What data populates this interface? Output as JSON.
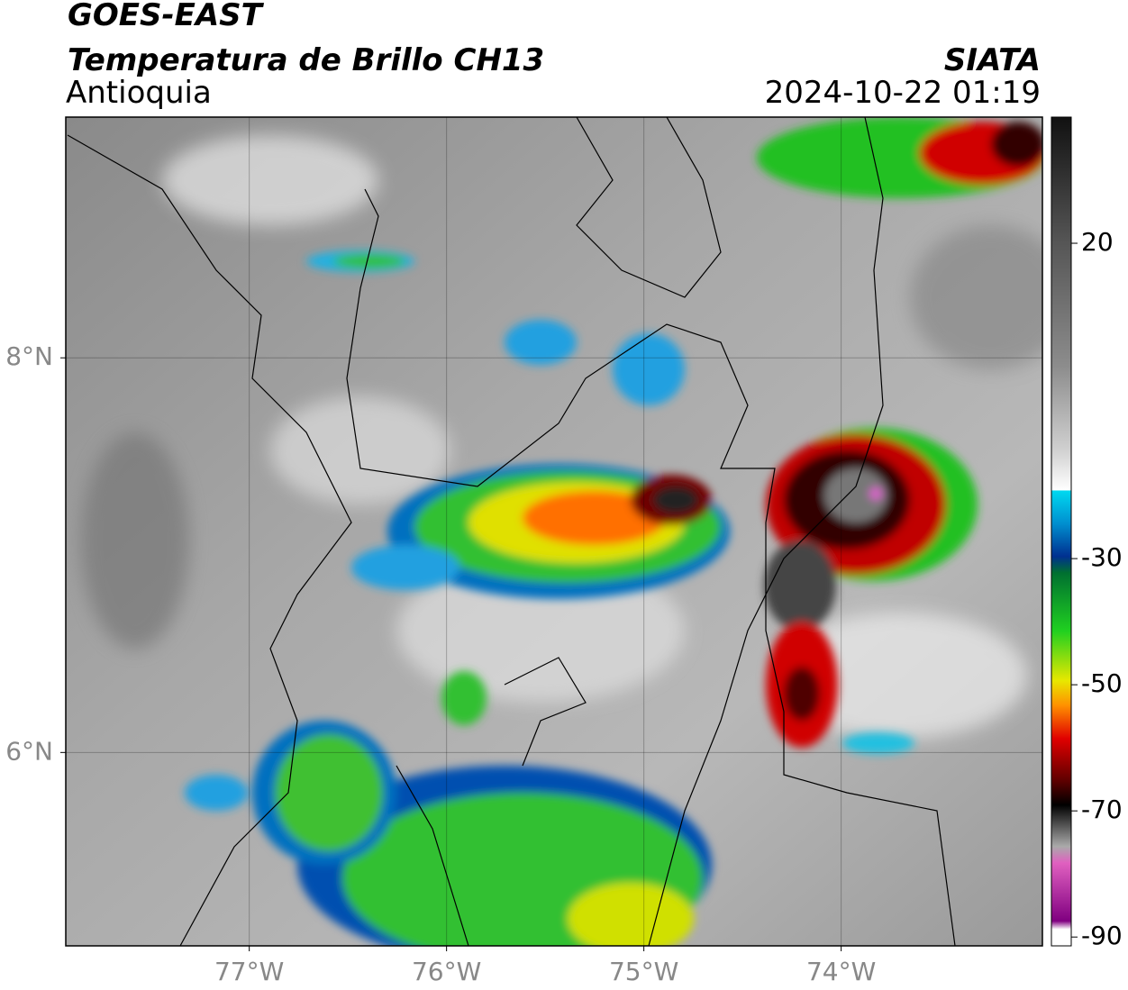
{
  "header": {
    "title": "GOES-EAST",
    "subtitle": "Temperatura de Brillo CH13",
    "region": "Antioquia",
    "source": "SIATA",
    "datetime": "2024-10-22 01:19"
  },
  "map": {
    "lonlim": [
      -77.93,
      -72.98
    ],
    "latlim": [
      5.02,
      9.22
    ],
    "grid": true,
    "xticks": [
      {
        "value": -77,
        "label": "77°W"
      },
      {
        "value": -76,
        "label": "76°W"
      },
      {
        "value": -75,
        "label": "75°W"
      },
      {
        "value": -74,
        "label": "74°W"
      }
    ],
    "yticks": [
      {
        "value": 8,
        "label": "8°N"
      },
      {
        "value": 6,
        "label": "6°N"
      }
    ]
  },
  "colorbar": {
    "lim": [
      -91.4,
      40
    ],
    "ticks": [
      20,
      -30,
      -50,
      -70,
      -90
    ]
  }
}
